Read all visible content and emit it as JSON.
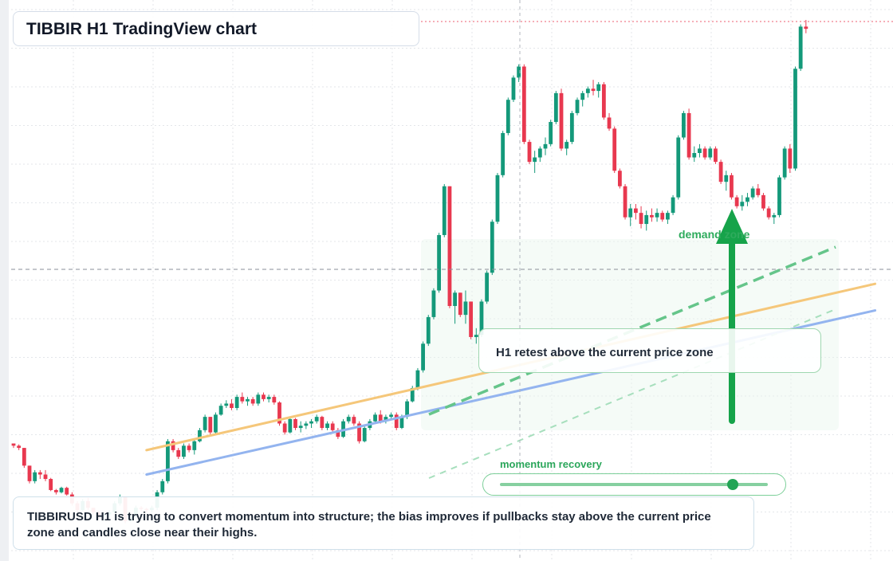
{
  "title": "TIBBIR H1 TradingView chart",
  "caption": "TIBBIRUSD H1 is trying to convert momentum into structure; the bias improves if pullbacks stay above the current price zone and candles close near their highs.",
  "callout": "H1 retest above the current price zone",
  "zone_label": "demand zone",
  "meter": {
    "label": "momentum recovery",
    "value": 0.87
  },
  "colors": {
    "up": "#14997a",
    "down": "#e8384f",
    "trend_orange": "#f5c77a",
    "trend_blue": "#93b4ef",
    "accent_green": "#16a34a"
  },
  "chart_data": {
    "type": "candlestick",
    "title": "TIBBIR H1 TradingView chart",
    "timeframe": "H1",
    "symbol": "TIBBIRUSD",
    "candles": [
      [
        40.0,
        40.0,
        38.0,
        39.0
      ],
      [
        39.0,
        39.6,
        37.0,
        38.0
      ],
      [
        38.0,
        38.0,
        29.0,
        30.0
      ],
      [
        30.0,
        30.0,
        22.0,
        23.0
      ],
      [
        23.0,
        28.0,
        22.0,
        27.0
      ],
      [
        27.0,
        28.0,
        24.0,
        26.0
      ],
      [
        26.0,
        28.0,
        23.0,
        24.0
      ],
      [
        24.0,
        24.5,
        18.5,
        19.0
      ],
      [
        19.0,
        19.5,
        17.0,
        18.0
      ],
      [
        18.0,
        20.5,
        17.5,
        20.0
      ],
      [
        20.0,
        20.5,
        16.5,
        17.0
      ],
      [
        17.0,
        18.0,
        12.0,
        13.0
      ],
      [
        13.0,
        14.0,
        9.0,
        10.0
      ],
      [
        10.0,
        15.0,
        9.5,
        14.0
      ],
      [
        14.0,
        15.5,
        10.0,
        11.0
      ],
      [
        11.0,
        11.0,
        8.0,
        9.0
      ],
      [
        9.0,
        9.5,
        6.0,
        7.0
      ],
      [
        7.0,
        9.0,
        5.0,
        8.0
      ],
      [
        8.0,
        10.0,
        6.5,
        9.0
      ],
      [
        9.0,
        14.0,
        8.5,
        13.0
      ],
      [
        13.0,
        17.0,
        12.0,
        16.0
      ],
      [
        16.0,
        16.0,
        4.0,
        5.0
      ],
      [
        5.0,
        7.5,
        4.5,
        7.0
      ],
      [
        7.0,
        12.0,
        6.5,
        11.0
      ],
      [
        11.0,
        11.8,
        9.5,
        10.5
      ],
      [
        10.5,
        11.0,
        9.0,
        10.0
      ],
      [
        10.0,
        12.0,
        9.0,
        11.0
      ],
      [
        11.0,
        19.0,
        10.0,
        18.0
      ],
      [
        18.0,
        24.0,
        17.0,
        23.0
      ],
      [
        23.0,
        42.0,
        22.0,
        41.0
      ],
      [
        41.0,
        42.0,
        36.0,
        37.0
      ],
      [
        37.0,
        38.0,
        33.0,
        34.0
      ],
      [
        34.0,
        40.0,
        33.0,
        39.0
      ],
      [
        39.0,
        40.0,
        36.0,
        37.0
      ],
      [
        37.0,
        42.0,
        35.0,
        41.0
      ],
      [
        41.0,
        47.0,
        40.5,
        46.0
      ],
      [
        46.0,
        53.0,
        45.0,
        52.0
      ],
      [
        52.0,
        52.0,
        44.0,
        45.0
      ],
      [
        45.0,
        54.0,
        44.0,
        53.0
      ],
      [
        53.0,
        58.0,
        52.5,
        57.0
      ],
      [
        57.0,
        59.5,
        56.0,
        58.0
      ],
      [
        58.0,
        60.0,
        55.0,
        56.0
      ],
      [
        56.0,
        62.0,
        55.0,
        61.0
      ],
      [
        61.0,
        63.0,
        58.0,
        59.0
      ],
      [
        59.0,
        61.0,
        57.0,
        60.0
      ],
      [
        60.0,
        61.0,
        57.0,
        58.0
      ],
      [
        58.0,
        63.0,
        57.0,
        62.0
      ],
      [
        62.0,
        63.0,
        59.0,
        60.0
      ],
      [
        60.0,
        62.0,
        58.5,
        61.0
      ],
      [
        61.0,
        62.0,
        57.5,
        58.5
      ],
      [
        58.5,
        59.0,
        48.0,
        49.0
      ],
      [
        49.0,
        50.0,
        44.0,
        45.0
      ],
      [
        45.0,
        52.0,
        44.5,
        51.0
      ],
      [
        51.0,
        51.5,
        46.0,
        47.0
      ],
      [
        47.0,
        50.0,
        45.0,
        48.0
      ],
      [
        48.0,
        50.0,
        46.5,
        49.0
      ],
      [
        49.0,
        51.0,
        47.0,
        50.0
      ],
      [
        50.0,
        53.0,
        49.0,
        52.0
      ],
      [
        52.0,
        52.5,
        46.0,
        47.0
      ],
      [
        47.0,
        50.0,
        46.0,
        49.0
      ],
      [
        49.0,
        50.0,
        45.0,
        46.0
      ],
      [
        46.0,
        47.0,
        42.0,
        43.0
      ],
      [
        43.0,
        51.0,
        42.5,
        50.0
      ],
      [
        50.0,
        53.0,
        49.0,
        52.0
      ],
      [
        52.0,
        53.0,
        48.0,
        49.0
      ],
      [
        49.0,
        50.0,
        40.0,
        41.0
      ],
      [
        41.0,
        48.0,
        40.5,
        47.0
      ],
      [
        47.0,
        51.0,
        46.0,
        50.0
      ],
      [
        50.0,
        54.0,
        49.5,
        53.0
      ],
      [
        53.0,
        55.0,
        49.0,
        50.0
      ],
      [
        50.0,
        53.0,
        49.0,
        52.0
      ],
      [
        52.0,
        54.0,
        51.0,
        53.0
      ],
      [
        53.0,
        54.0,
        46.0,
        47.0
      ],
      [
        47.0,
        53.0,
        46.5,
        52.0
      ],
      [
        52.0,
        60.0,
        51.0,
        59.0
      ],
      [
        59.0,
        66.0,
        58.5,
        65.0
      ],
      [
        65.0,
        74.0,
        64.0,
        73.0
      ],
      [
        73.0,
        86.0,
        72.0,
        85.0
      ],
      [
        85.0,
        98.0,
        84.0,
        97.0
      ],
      [
        97.0,
        110.0,
        96.0,
        109.0
      ],
      [
        109.0,
        135.0,
        108.0,
        134.0
      ],
      [
        134.0,
        157.0,
        133.0,
        156.0
      ],
      [
        156.0,
        156.0,
        101.0,
        102.0
      ],
      [
        102.0,
        109.0,
        94.0,
        108.0
      ],
      [
        108.0,
        108.0,
        97.0,
        98.0
      ],
      [
        98.0,
        109.0,
        94.0,
        104.0
      ],
      [
        104.0,
        104.0,
        87.0,
        88.0
      ],
      [
        88.0,
        92.0,
        85.0,
        89.0
      ],
      [
        89.0,
        105.0,
        88.0,
        104.0
      ],
      [
        104.0,
        118.0,
        103.0,
        117.0
      ],
      [
        117.0,
        141.0,
        116.0,
        140.0
      ],
      [
        140.0,
        162.0,
        139.0,
        161.0
      ],
      [
        161.0,
        181.0,
        160.0,
        180.0
      ],
      [
        180.0,
        196.0,
        179.0,
        195.0
      ],
      [
        195.0,
        206.0,
        194.0,
        205.0
      ],
      [
        205.0,
        211.0,
        203.0,
        210.0
      ],
      [
        210.0,
        211.0,
        175.0,
        176.0
      ],
      [
        176.0,
        177.0,
        166.0,
        167.0
      ],
      [
        167.0,
        172.0,
        162.0,
        169.0
      ],
      [
        169.0,
        174.0,
        167.0,
        173.0
      ],
      [
        173.0,
        178.0,
        170.0,
        175.0
      ],
      [
        175.0,
        186.0,
        174.0,
        185.0
      ],
      [
        185.0,
        199.0,
        184.0,
        198.0
      ],
      [
        198.0,
        200.0,
        172.0,
        173.0
      ],
      [
        173.0,
        177.0,
        170.0,
        176.0
      ],
      [
        176.0,
        190.0,
        175.0,
        189.0
      ],
      [
        189.0,
        196.0,
        188.0,
        195.0
      ],
      [
        195.0,
        199.0,
        192.0,
        198.0
      ],
      [
        198.0,
        201.0,
        196.0,
        200.0
      ],
      [
        200.0,
        204.0,
        197.0,
        199.0
      ],
      [
        199.0,
        203.0,
        196.0,
        202.0
      ],
      [
        202.0,
        203.0,
        186.0,
        187.0
      ],
      [
        187.0,
        189.0,
        181.0,
        182.0
      ],
      [
        182.0,
        183.0,
        162.0,
        163.0
      ],
      [
        163.0,
        164.0,
        155.0,
        156.0
      ],
      [
        156.0,
        157.0,
        141.0,
        142.0
      ],
      [
        142.0,
        148.0,
        138.0,
        146.0
      ],
      [
        146.0,
        148.0,
        141.0,
        144.0
      ],
      [
        144.0,
        147.0,
        137.0,
        139.0
      ],
      [
        139.0,
        145.0,
        136.0,
        143.0
      ],
      [
        143.0,
        146.0,
        140.0,
        142.0
      ],
      [
        142.0,
        146.0,
        140.0,
        144.0
      ],
      [
        144.0,
        145.0,
        140.0,
        141.0
      ],
      [
        141.0,
        145.0,
        139.0,
        144.0
      ],
      [
        144.0,
        152.0,
        143.0,
        151.0
      ],
      [
        151.0,
        179.0,
        150.0,
        178.0
      ],
      [
        178.0,
        190.0,
        177.0,
        189.0
      ],
      [
        189.0,
        191.0,
        168.0,
        169.0
      ],
      [
        169.0,
        174.0,
        167.0,
        171.0
      ],
      [
        171.0,
        175.0,
        169.0,
        173.0
      ],
      [
        173.0,
        174.0,
        168.0,
        169.0
      ],
      [
        169.0,
        174.0,
        168.0,
        173.0
      ],
      [
        173.0,
        174.0,
        166.0,
        167.0
      ],
      [
        167.0,
        168.0,
        157.0,
        158.0
      ],
      [
        158.0,
        163.0,
        154.0,
        161.0
      ],
      [
        161.0,
        162.0,
        150.0,
        151.0
      ],
      [
        151.0,
        152.0,
        146.0,
        147.0
      ],
      [
        147.0,
        152.0,
        145.0,
        149.0
      ],
      [
        149.0,
        153.0,
        147.0,
        151.0
      ],
      [
        151.0,
        156.0,
        150.0,
        155.0
      ],
      [
        155.0,
        157.0,
        151.0,
        152.0
      ],
      [
        152.0,
        153.0,
        145.0,
        146.0
      ],
      [
        146.0,
        147.0,
        141.0,
        142.0
      ],
      [
        142.0,
        144.0,
        139.0,
        143.0
      ],
      [
        143.0,
        161.0,
        142.0,
        160.0
      ],
      [
        160.0,
        174.0,
        159.0,
        173.0
      ],
      [
        173.0,
        175.0,
        162.0,
        164.0
      ],
      [
        164.0,
        210.0,
        163.0,
        209.0
      ],
      [
        209.0,
        229.0,
        208.0,
        228.0
      ],
      [
        228.0,
        231.0,
        225.0,
        227.0
      ]
    ],
    "trendlines": [
      {
        "color": "orange",
        "points": [
          [
            25,
            37
          ],
          [
            162,
            112
          ]
        ]
      },
      {
        "color": "blue",
        "points": [
          [
            25,
            26
          ],
          [
            162,
            100
          ]
        ]
      }
    ],
    "ylim": [
      -13,
      240
    ],
    "grid": true
  }
}
